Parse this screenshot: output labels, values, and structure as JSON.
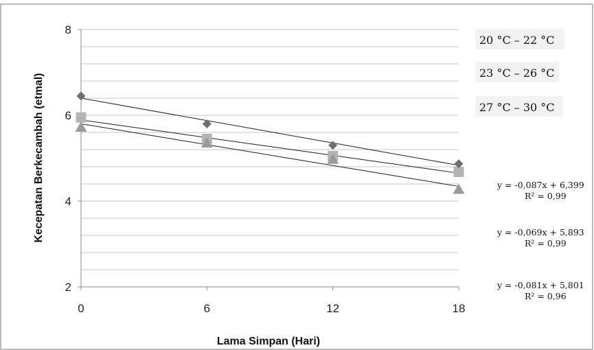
{
  "chart_data": {
    "type": "scatter",
    "xlabel": "Lama Simpan (Hari)",
    "ylabel": "Kecepatan Berkecambah (etmal)",
    "x_ticks": [
      0,
      6,
      12,
      18
    ],
    "y_ticks": [
      2,
      4,
      6,
      8
    ],
    "xlim": [
      0,
      18
    ],
    "ylim": [
      2,
      8
    ],
    "grid": "horizontal minor lines every 0.4",
    "legend_position": "top-right",
    "legend": [
      "20 °C – 22 °C",
      "23 °C – 26 °C",
      "27 °C – 30 °C"
    ],
    "series": [
      {
        "name": "20 °C – 22 °C",
        "marker": "diamond",
        "color": "#6e6e6e",
        "x": [
          0,
          6,
          12,
          18
        ],
        "y": [
          6.45,
          5.8,
          5.3,
          4.87
        ],
        "trendline": {
          "slope": -0.087,
          "intercept": 6.399
        },
        "equation": "y = -0,087x + 6,399",
        "r2": "R² = 0,99"
      },
      {
        "name": "23 °C – 26 °C",
        "marker": "square",
        "color": "#b4b4b4",
        "x": [
          0,
          6,
          12,
          18
        ],
        "y": [
          5.95,
          5.45,
          5.05,
          4.68
        ],
        "trendline": {
          "slope": -0.069,
          "intercept": 5.893
        },
        "equation": "y = -0,069x + 5,893",
        "r2": "R² = 0,99"
      },
      {
        "name": "27 °C – 30 °C",
        "marker": "triangle",
        "color": "#9a9a9a",
        "x": [
          0,
          6,
          12,
          18
        ],
        "y": [
          5.72,
          5.35,
          4.97,
          4.27
        ],
        "trendline": {
          "slope": -0.081,
          "intercept": 5.801
        },
        "equation": "y = -0,081x + 5,801",
        "r2": "R² = 0,96"
      }
    ]
  }
}
